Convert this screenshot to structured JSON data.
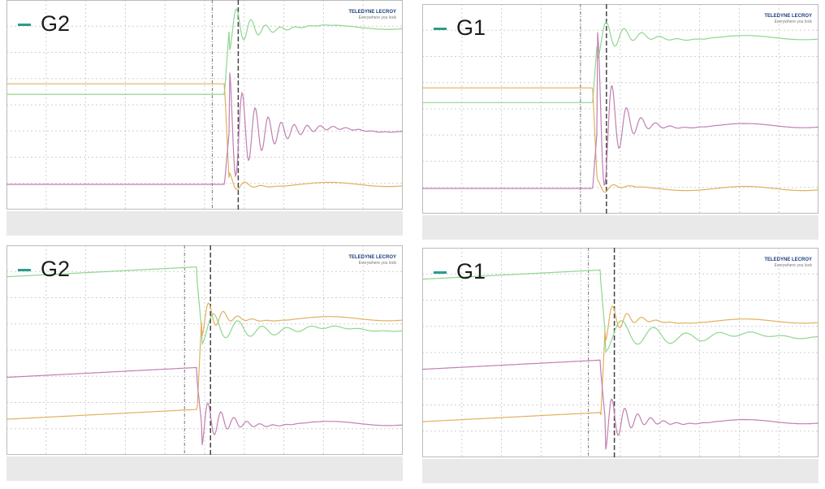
{
  "panels": [
    {
      "label": "G2",
      "logo": "TELEDYNE LECROY",
      "tagline": "Everywhere you look"
    },
    {
      "label": "G1",
      "logo": "TELEDYNE LECROY",
      "tagline": "Everywhere you look"
    },
    {
      "label": "G2",
      "logo": "TELEDYNE LECROY",
      "tagline": "Everywhere you look"
    },
    {
      "label": "G1",
      "logo": "TELEDYNE LECROY",
      "tagline": "Everywhere you look"
    }
  ]
}
